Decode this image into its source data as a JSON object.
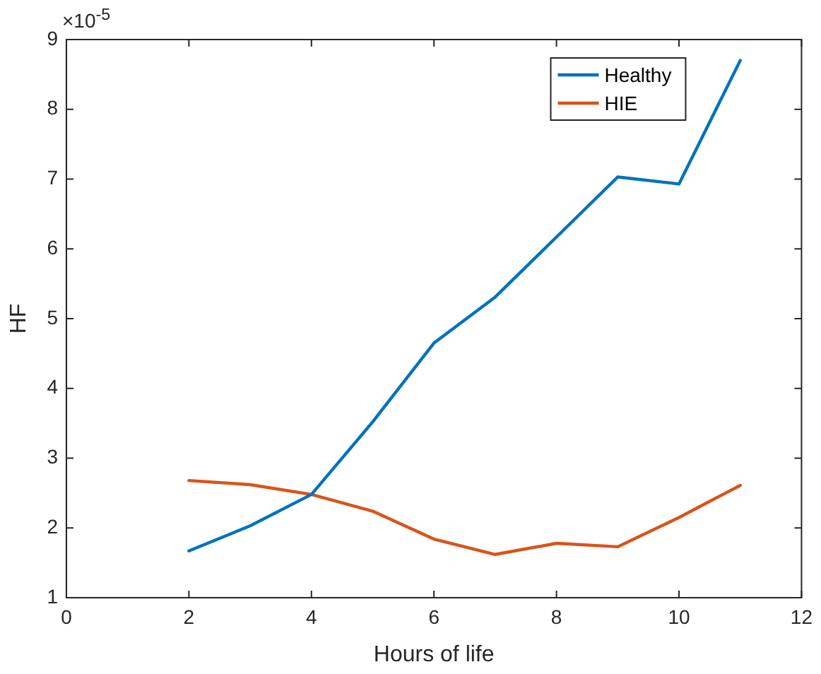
{
  "chart_data": {
    "type": "line",
    "xlabel": "Hours of life",
    "ylabel": "HF",
    "annotations": [
      "×10$^{-5}$"
    ],
    "x": [
      2,
      3,
      4,
      5,
      6,
      7,
      8,
      9,
      10,
      11
    ],
    "series": [
      {
        "name": "Healthy",
        "color": "#0072bd",
        "values": [
          1.67,
          2.03,
          2.48,
          3.52,
          4.65,
          5.31,
          6.17,
          7.03,
          6.93,
          8.7
        ]
      },
      {
        "name": "HIE",
        "color": "#d95319",
        "values": [
          2.68,
          2.62,
          2.48,
          2.24,
          1.84,
          1.62,
          1.78,
          1.73,
          2.15,
          2.61
        ]
      }
    ],
    "xlim": [
      0,
      12
    ],
    "xticks": [
      0,
      2,
      4,
      6,
      8,
      10,
      12
    ],
    "ylim": [
      1,
      9
    ],
    "yticks": [
      1,
      2,
      3,
      4,
      5,
      6,
      7,
      8,
      9
    ],
    "grid": false,
    "legend": "top right",
    "marker": "none",
    "line_style": "solid"
  }
}
